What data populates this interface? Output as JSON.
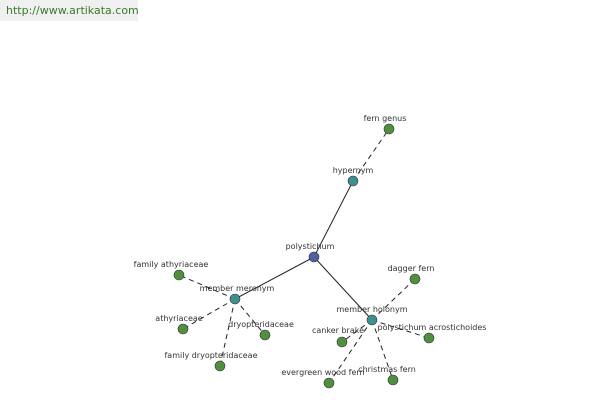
{
  "header": {
    "url": "http://www.artikata.com"
  },
  "nodes": [
    {
      "label": "polystichum"
    },
    {
      "label": "hypernym"
    },
    {
      "label": "fern genus"
    },
    {
      "label": "member meronym"
    },
    {
      "label": "family athyriaceae"
    },
    {
      "label": "athyriaceae"
    },
    {
      "label": "dryopteridaceae"
    },
    {
      "label": "family dryopteridaceae"
    },
    {
      "label": "member holonym"
    },
    {
      "label": "dagger fern"
    },
    {
      "label": "polystichum acrostichoides"
    },
    {
      "label": "canker brake"
    },
    {
      "label": "christmas fern"
    },
    {
      "label": "evergreen wood fern"
    }
  ]
}
